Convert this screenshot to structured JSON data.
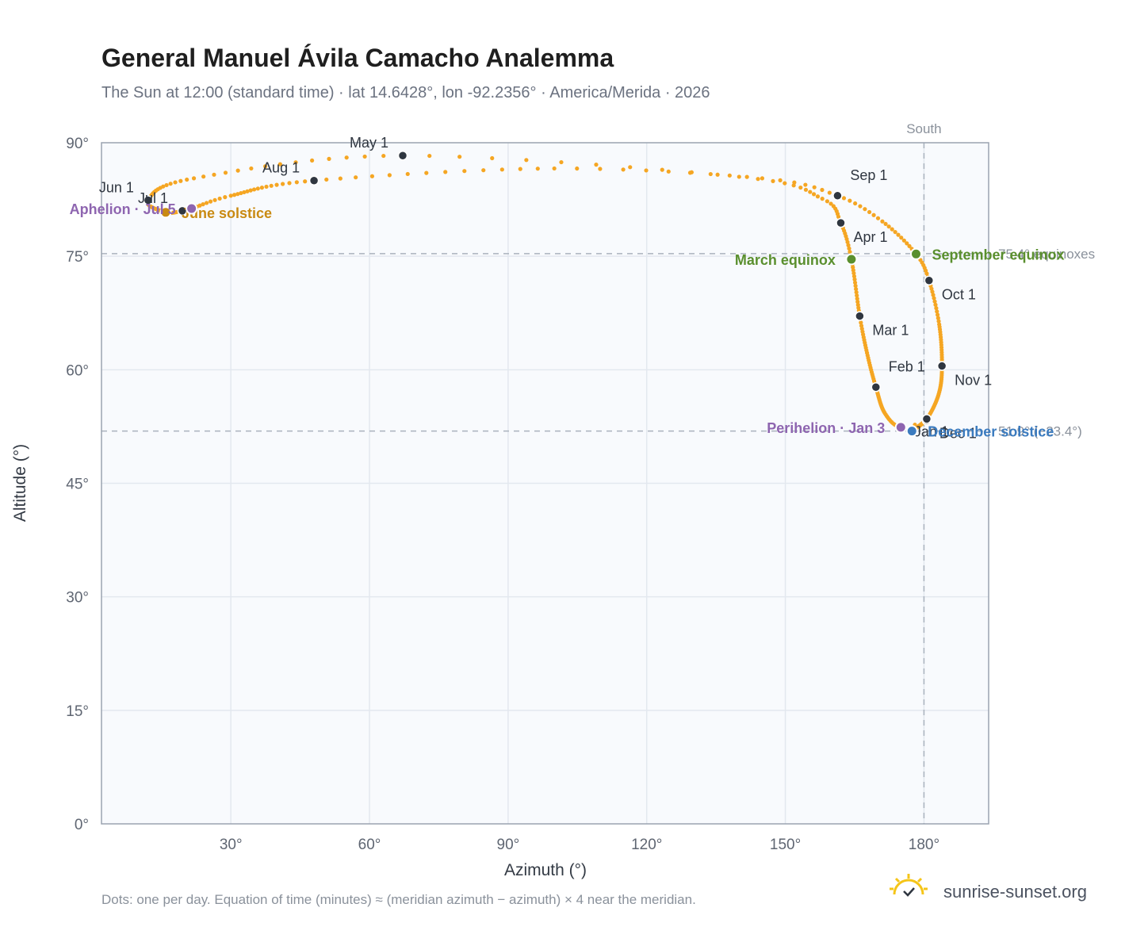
{
  "chart_data": {
    "type": "scatter",
    "title": "General Manuel Ávila Camacho Analemma",
    "subtitle": "The Sun at 12:00 (standard time) · lat 14.6428°, lon -92.2356° · America/Merida · 2026",
    "xlabel": "Azimuth (°)",
    "ylabel": "Altitude (°)",
    "xlim": [
      2,
      194
    ],
    "ylim": [
      0,
      90
    ],
    "xticks": [
      30,
      60,
      90,
      120,
      150,
      180
    ],
    "xtick_labels": [
      "30°",
      "60°",
      "90°",
      "120°",
      "150°",
      "180°"
    ],
    "yticks": [
      0,
      15,
      30,
      45,
      60,
      75,
      90
    ],
    "ytick_labels": [
      "0°",
      "15°",
      "30°",
      "45°",
      "60°",
      "75°",
      "90°"
    ],
    "grid": true,
    "series_color": "#f5a623",
    "key_points": [
      {
        "date": "Jan 1",
        "az": 180.6,
        "alt": 53.3
      },
      {
        "date": "Jan 3",
        "az": 175.0,
        "alt": 52.4
      },
      {
        "date": "Jan 15",
        "az": 171.5,
        "alt": 54.3
      },
      {
        "date": "Feb 1",
        "az": 169.6,
        "alt": 57.7
      },
      {
        "date": "Feb 15",
        "az": 167.8,
        "alt": 61.9
      },
      {
        "date": "Mar 1",
        "az": 166.1,
        "alt": 67.1
      },
      {
        "date": "Mar 20",
        "az": 164.3,
        "alt": 74.6
      },
      {
        "date": "Apr 1",
        "az": 162.0,
        "alt": 79.4
      },
      {
        "date": "Apr 10",
        "az": 158.0,
        "alt": 82.6
      },
      {
        "date": "Apr 20",
        "az": 140.0,
        "alt": 85.5
      },
      {
        "date": "May 1",
        "az": 67.2,
        "alt": 88.3
      },
      {
        "date": "May 15",
        "az": 22.0,
        "alt": 85.3
      },
      {
        "date": "Jun 1",
        "az": 12.1,
        "alt": 82.4
      },
      {
        "date": "Jun 21",
        "az": 15.9,
        "alt": 80.8
      },
      {
        "date": "Jul 1",
        "az": 19.5,
        "alt": 81.0
      },
      {
        "date": "Jul 5",
        "az": 21.5,
        "alt": 81.3
      },
      {
        "date": "Jul 15",
        "az": 30.0,
        "alt": 83.0
      },
      {
        "date": "Aug 1",
        "az": 48.0,
        "alt": 85.0
      },
      {
        "date": "Aug 15",
        "az": 100.0,
        "alt": 86.6
      },
      {
        "date": "Aug 25",
        "az": 145.0,
        "alt": 85.3
      },
      {
        "date": "Sep 1",
        "az": 161.3,
        "alt": 83.0
      },
      {
        "date": "Sep 10",
        "az": 171.0,
        "alt": 79.6
      },
      {
        "date": "Sep 22",
        "az": 178.3,
        "alt": 75.3
      },
      {
        "date": "Oct 1",
        "az": 181.1,
        "alt": 71.8
      },
      {
        "date": "Oct 15",
        "az": 183.3,
        "alt": 66.0
      },
      {
        "date": "Nov 1",
        "az": 183.9,
        "alt": 60.5
      },
      {
        "date": "Nov 15",
        "az": 183.2,
        "alt": 56.8
      },
      {
        "date": "Dec 1",
        "az": 180.6,
        "alt": 53.5
      },
      {
        "date": "Dec 21",
        "az": 177.4,
        "alt": 51.9
      },
      {
        "date": "Dec 31",
        "az": 180.2,
        "alt": 53.2
      }
    ],
    "month_markers": [
      {
        "label": "Jan 1",
        "az": 180.6,
        "alt": 53.3,
        "anchor": "bottom"
      },
      {
        "label": "Feb 1",
        "az": 169.6,
        "alt": 57.7,
        "anchor": "above-right"
      },
      {
        "label": "Mar 1",
        "az": 166.1,
        "alt": 67.1,
        "anchor": "right"
      },
      {
        "label": "Apr 1",
        "az": 162.0,
        "alt": 79.4,
        "anchor": "right"
      },
      {
        "label": "May 1",
        "az": 67.2,
        "alt": 88.3,
        "anchor": "above-left"
      },
      {
        "label": "Jun 1",
        "az": 12.1,
        "alt": 82.4,
        "anchor": "above-left"
      },
      {
        "label": "Jul 1",
        "az": 19.5,
        "alt": 81.0,
        "anchor": "above-left"
      },
      {
        "label": "Aug 1",
        "az": 48.0,
        "alt": 85.0,
        "anchor": "above-left"
      },
      {
        "label": "Sep 1",
        "az": 161.3,
        "alt": 83.0,
        "anchor": "above-right"
      },
      {
        "label": "Oct 1",
        "az": 181.1,
        "alt": 71.8,
        "anchor": "right"
      },
      {
        "label": "Nov 1",
        "az": 183.9,
        "alt": 60.5,
        "anchor": "right"
      },
      {
        "label": "Dec 1",
        "az": 180.6,
        "alt": 53.5,
        "anchor": "right"
      }
    ],
    "events": [
      {
        "label": "March equinox",
        "az": 164.3,
        "alt": 74.6,
        "color": "#5a8f2e",
        "anchor": "left"
      },
      {
        "label": "September equinox",
        "az": 178.3,
        "alt": 75.3,
        "color": "#5a8f2e",
        "anchor": "right"
      },
      {
        "label": "June solstice",
        "az": 15.9,
        "alt": 80.8,
        "color": "#c98a12",
        "anchor": "right"
      },
      {
        "label": "December solstice",
        "az": 177.4,
        "alt": 51.9,
        "color": "#3b7bbf",
        "anchor": "right"
      },
      {
        "label": "Aphelion · Jul 5",
        "az": 21.5,
        "alt": 81.3,
        "color": "#8e65b0",
        "anchor": "left"
      },
      {
        "label": "Perihelion · Jan 3",
        "az": 175.0,
        "alt": 52.4,
        "color": "#8e65b0",
        "anchor": "left"
      }
    ],
    "reference_lines": [
      {
        "type": "horizontal",
        "value": 75.35,
        "label": "75.4° equinoxes"
      },
      {
        "type": "horizontal",
        "value": 51.9,
        "label": "51.9° (−23.4°)"
      },
      {
        "type": "vertical",
        "value": 180,
        "label": "South"
      }
    ]
  },
  "footnote": "Dots: one per day. Equation of time (minutes) ≈ (meridian azimuth − azimuth) × 4 near the meridian.",
  "brand": {
    "name": "sunrise-sunset.org",
    "icon": "sun-check-icon",
    "icon_color": "#f5c518"
  }
}
